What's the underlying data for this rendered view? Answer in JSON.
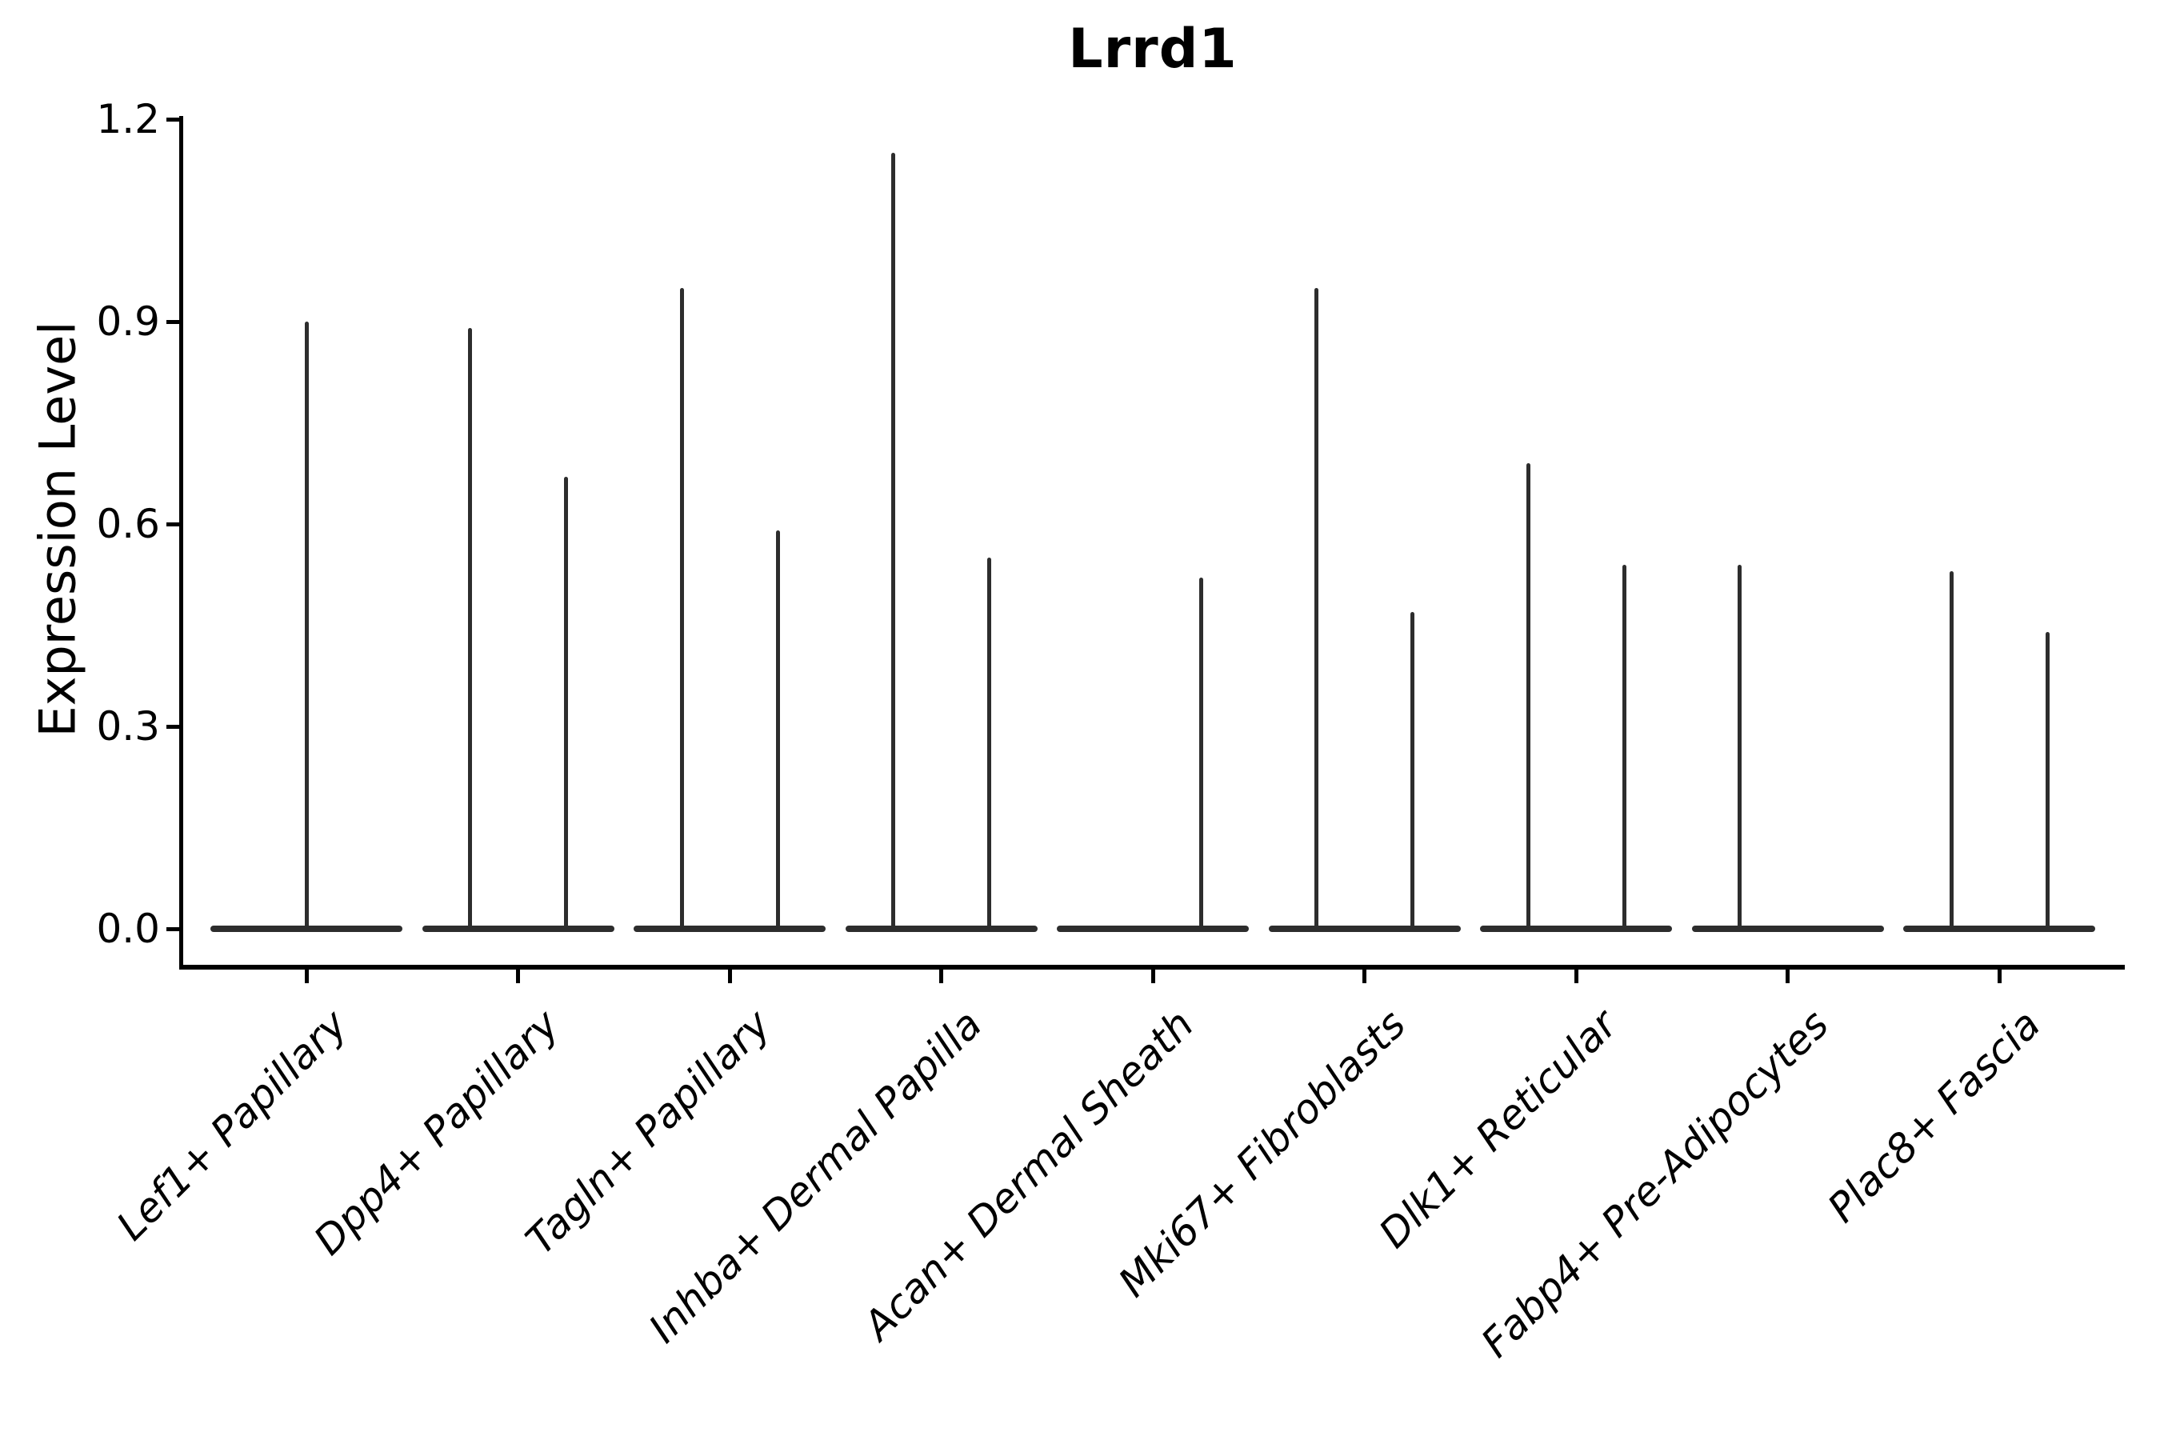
{
  "title": "Lrrd1",
  "y_axis": {
    "label": "Expression Level"
  },
  "chart_data": {
    "type": "violin",
    "title": "Lrrd1",
    "xlabel": "",
    "ylabel": "Expression Level",
    "ylim": [
      0,
      1.2
    ],
    "yticks": [
      "0.0",
      "0.3",
      "0.6",
      "0.9",
      "1.2"
    ],
    "ytick_values": [
      0.0,
      0.3,
      0.6,
      0.9,
      1.2
    ],
    "grid": false,
    "legend_position": "none",
    "background_color": "#ffffff",
    "axis_color": "#000000",
    "violin_color": "#2d2d2d",
    "categories": [
      "Lef1+ Papillary",
      "Dpp4+ Papillary",
      "Tagln+ Papillary",
      "Inhba+ Dermal Papilla",
      "Acan+ Dermal Sheath",
      "Mki67+ Fibroblasts",
      "Dlk1+ Reticular",
      "Fabp4+ Pre-Adipocytes",
      "Plac8+ Fascia"
    ],
    "violins": [
      {
        "category": "Lef1+ Papillary",
        "baseline_value": 0.0,
        "spikes": [
          {
            "position": "center",
            "max_expression": 0.9
          }
        ]
      },
      {
        "category": "Dpp4+ Papillary",
        "baseline_value": 0.0,
        "spikes": [
          {
            "position": "left",
            "max_expression": 0.89
          },
          {
            "position": "right",
            "max_expression": 0.67
          }
        ]
      },
      {
        "category": "Tagln+ Papillary",
        "baseline_value": 0.0,
        "spikes": [
          {
            "position": "left",
            "max_expression": 0.95
          },
          {
            "position": "right",
            "max_expression": 0.59
          }
        ]
      },
      {
        "category": "Inhba+ Dermal Papilla",
        "baseline_value": 0.0,
        "spikes": [
          {
            "position": "left",
            "max_expression": 1.15
          },
          {
            "position": "right",
            "max_expression": 0.55
          }
        ]
      },
      {
        "category": "Acan+ Dermal Sheath",
        "baseline_value": 0.0,
        "spikes": [
          {
            "position": "right",
            "max_expression": 0.52
          }
        ]
      },
      {
        "category": "Mki67+ Fibroblasts",
        "baseline_value": 0.0,
        "spikes": [
          {
            "position": "left",
            "max_expression": 0.95
          },
          {
            "position": "right",
            "max_expression": 0.47
          }
        ]
      },
      {
        "category": "Dlk1+ Reticular",
        "baseline_value": 0.0,
        "spikes": [
          {
            "position": "left",
            "max_expression": 0.69
          },
          {
            "position": "right",
            "max_expression": 0.54
          }
        ]
      },
      {
        "category": "Fabp4+ Pre-Adipocytes",
        "baseline_value": 0.0,
        "spikes": [
          {
            "position": "left",
            "max_expression": 0.54
          }
        ]
      },
      {
        "category": "Plac8+ Fascia",
        "baseline_value": 0.0,
        "spikes": [
          {
            "position": "left",
            "max_expression": 0.53
          },
          {
            "position": "right",
            "max_expression": 0.44
          }
        ]
      }
    ]
  }
}
